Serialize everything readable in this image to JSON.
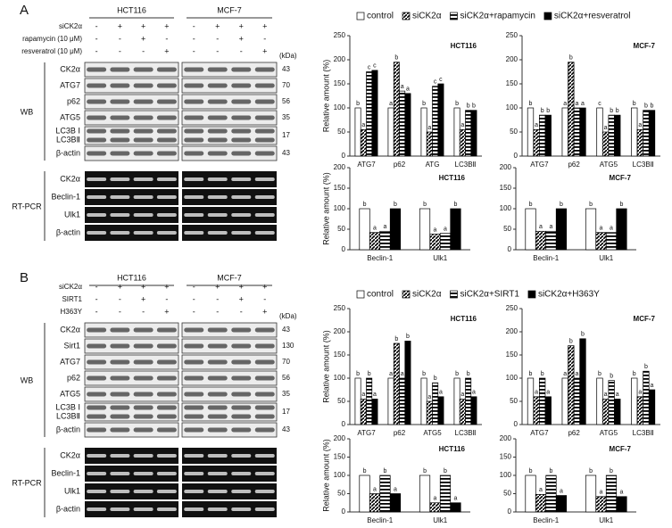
{
  "figure": {
    "panels": [
      {
        "label": "A",
        "cell_lines": [
          "HCT116",
          "MCF-7"
        ],
        "treatments": [
          {
            "name": "siCK2α",
            "signs": [
              "-",
              "+",
              "+",
              "+"
            ]
          },
          {
            "name": "rapamycin (10 μM)",
            "signs": [
              "-",
              "-",
              "+",
              "-"
            ]
          },
          {
            "name": "resveratrol (10 μM)",
            "signs": [
              "-",
              "-",
              "-",
              "+"
            ]
          }
        ],
        "kda_unit": "(kDa)",
        "wb_label": "WB",
        "wb_rows": [
          {
            "names": [
              "CK2α"
            ],
            "kda": 43
          },
          {
            "names": [
              "ATG7"
            ],
            "kda": 70
          },
          {
            "names": [
              "p62"
            ],
            "kda": 56
          },
          {
            "names": [
              "ATG5"
            ],
            "kda": 35
          },
          {
            "names": [
              "LC3B Ⅰ",
              "LC3BⅡ"
            ],
            "kda": 17
          },
          {
            "names": [
              "β-actin"
            ],
            "kda": 43
          }
        ],
        "rtpcr_label": "RT-PCR",
        "rtpcr_rows": [
          "CK2α",
          "Beclin-1",
          "Ulk1",
          "β-actin"
        ]
      },
      {
        "label": "B",
        "cell_lines": [
          "HCT116",
          "MCF-7"
        ],
        "treatments": [
          {
            "name": "siCK2α",
            "signs": [
              "-",
              "+",
              "+",
              "+"
            ]
          },
          {
            "name": "SIRT1",
            "signs": [
              "-",
              "-",
              "+",
              "-"
            ]
          },
          {
            "name": "H363Y",
            "signs": [
              "-",
              "-",
              "-",
              "+"
            ]
          }
        ],
        "kda_unit": "(kDa)",
        "wb_label": "WB",
        "wb_rows": [
          {
            "names": [
              "CK2α"
            ],
            "kda": 43
          },
          {
            "names": [
              "Sirt1"
            ],
            "kda": 130
          },
          {
            "names": [
              "ATG7"
            ],
            "kda": 70
          },
          {
            "names": [
              "p62"
            ],
            "kda": 56
          },
          {
            "names": [
              "ATG5"
            ],
            "kda": 35
          },
          {
            "names": [
              "LC3B Ⅰ",
              "LC3BⅡ"
            ],
            "kda": 17
          },
          {
            "names": [
              "β-actin"
            ],
            "kda": 43
          }
        ],
        "rtpcr_label": "RT-PCR",
        "rtpcr_rows": [
          "CK2α",
          "Beclin-1",
          "Ulk1",
          "β-actin"
        ]
      }
    ]
  },
  "chart_data": [
    {
      "type": "bar",
      "title": "HCT116",
      "y_label": "Relative amount (%)",
      "legend": true,
      "categories": [
        "ATG7",
        "p62",
        "ATG",
        "LC3BⅡ"
      ],
      "ylim": [
        0,
        250
      ],
      "yticks": [
        0,
        50,
        100,
        150,
        200,
        250
      ],
      "series": [
        {
          "name": "control",
          "color": "#ffffff",
          "pattern": "solid",
          "values": [
            100,
            100,
            100,
            100
          ],
          "letters": [
            "b",
            "a",
            "b",
            "b"
          ]
        },
        {
          "name": "siCK2α",
          "color": "#000000",
          "pattern": "diagonal",
          "values": [
            55,
            195,
            50,
            55
          ],
          "letters": [
            "a",
            "b",
            "a",
            "a"
          ]
        },
        {
          "name": "siCK2α+rapamycin",
          "color": "#000000",
          "pattern": "horizontal",
          "values": [
            175,
            135,
            145,
            95
          ],
          "letters": [
            "c",
            "a",
            "c",
            "b"
          ]
        },
        {
          "name": "siCK2α+resveratrol",
          "color": "#000000",
          "pattern": "solid",
          "values": [
            178,
            130,
            150,
            95
          ],
          "letters": [
            "c",
            "a",
            "c",
            "b"
          ]
        }
      ]
    },
    {
      "type": "bar",
      "title": "MCF-7",
      "categories": [
        "ATG7",
        "p62",
        "ATG5",
        "LC3BⅡ"
      ],
      "ylim": [
        0,
        250
      ],
      "yticks": [
        0,
        50,
        100,
        150,
        200,
        250
      ],
      "series": [
        {
          "name": "control",
          "color": "#ffffff",
          "pattern": "solid",
          "values": [
            100,
            100,
            100,
            100
          ],
          "letters": [
            "b",
            "a",
            "c",
            "b"
          ]
        },
        {
          "name": "siCK2α",
          "color": "#000000",
          "pattern": "diagonal",
          "values": [
            55,
            195,
            50,
            55
          ],
          "letters": [
            "a",
            "b",
            "a",
            "a"
          ]
        },
        {
          "name": "siCK2α+rapamycin",
          "color": "#000000",
          "pattern": "horizontal",
          "values": [
            85,
            100,
            85,
            95
          ],
          "letters": [
            "b",
            "a",
            "b",
            "b"
          ]
        },
        {
          "name": "siCK2α+resveratrol",
          "color": "#000000",
          "pattern": "solid",
          "values": [
            85,
            100,
            85,
            95
          ],
          "letters": [
            "b",
            "a",
            "b",
            "b"
          ]
        }
      ]
    },
    {
      "type": "bar",
      "title": "HCT116",
      "y_label": "Relative amount (%)",
      "categories": [
        "Beclin-1",
        "Ulk1"
      ],
      "ylim": [
        0,
        200
      ],
      "yticks": [
        0,
        50,
        100,
        150,
        200
      ],
      "series": [
        {
          "name": "control",
          "color": "#ffffff",
          "pattern": "solid",
          "values": [
            100,
            100
          ],
          "letters": [
            "b",
            "b"
          ]
        },
        {
          "name": "siCK2α",
          "color": "#000000",
          "pattern": "diagonal",
          "values": [
            42,
            38
          ],
          "letters": [
            "a",
            "a"
          ]
        },
        {
          "name": "siCK2α+rapamycin",
          "color": "#000000",
          "pattern": "horizontal",
          "values": [
            45,
            40
          ],
          "letters": [
            "a",
            "a"
          ]
        },
        {
          "name": "siCK2α+resveratrol",
          "color": "#000000",
          "pattern": "solid",
          "values": [
            100,
            100
          ],
          "letters": [
            "b",
            "b"
          ]
        }
      ]
    },
    {
      "type": "bar",
      "title": "MCF-7",
      "categories": [
        "Beclin-1",
        "Ulk1"
      ],
      "ylim": [
        0,
        200
      ],
      "yticks": [
        0,
        50,
        100,
        150,
        200
      ],
      "series": [
        {
          "name": "control",
          "color": "#ffffff",
          "pattern": "solid",
          "values": [
            100,
            100
          ],
          "letters": [
            "b",
            "b"
          ]
        },
        {
          "name": "siCK2α",
          "color": "#000000",
          "pattern": "diagonal",
          "values": [
            45,
            42
          ],
          "letters": [
            "a",
            "a"
          ]
        },
        {
          "name": "siCK2α+rapamycin",
          "color": "#000000",
          "pattern": "horizontal",
          "values": [
            45,
            42
          ],
          "letters": [
            "a",
            "a"
          ]
        },
        {
          "name": "siCK2α+resveratrol",
          "color": "#000000",
          "pattern": "solid",
          "values": [
            100,
            100
          ],
          "letters": [
            "b",
            "b"
          ]
        }
      ]
    },
    {
      "type": "bar",
      "title": "HCT116",
      "y_label": "Relative amount (%)",
      "legend": true,
      "categories": [
        "ATG7",
        "p62",
        "ATG5",
        "LC3BⅡ"
      ],
      "ylim": [
        0,
        250
      ],
      "yticks": [
        0,
        50,
        100,
        150,
        200,
        250
      ],
      "series": [
        {
          "name": "control",
          "color": "#ffffff",
          "pattern": "solid",
          "values": [
            100,
            100,
            100,
            100
          ],
          "letters": [
            "b",
            "a",
            "b",
            "b"
          ]
        },
        {
          "name": "siCK2α",
          "color": "#000000",
          "pattern": "diagonal",
          "values": [
            55,
            175,
            50,
            55
          ],
          "letters": [
            "a",
            "b",
            "a",
            "a"
          ]
        },
        {
          "name": "siCK2α+SIRT1",
          "color": "#000000",
          "pattern": "horizontal",
          "values": [
            100,
            100,
            90,
            100
          ],
          "letters": [
            "b",
            "a",
            "b",
            "b"
          ]
        },
        {
          "name": "siCK2α+H363Y",
          "color": "#000000",
          "pattern": "solid",
          "values": [
            55,
            180,
            60,
            60
          ],
          "letters": [
            "a",
            "b",
            "a",
            "a"
          ]
        }
      ]
    },
    {
      "type": "bar",
      "title": "MCF-7",
      "categories": [
        "ATG7",
        "p62",
        "ATG5",
        "LC3BⅡ"
      ],
      "ylim": [
        0,
        250
      ],
      "yticks": [
        0,
        50,
        100,
        150,
        200,
        250
      ],
      "series": [
        {
          "name": "control",
          "color": "#ffffff",
          "pattern": "solid",
          "values": [
            100,
            100,
            100,
            100
          ],
          "letters": [
            "b",
            "a",
            "b",
            "b"
          ]
        },
        {
          "name": "siCK2α",
          "color": "#000000",
          "pattern": "diagonal",
          "values": [
            60,
            170,
            55,
            60
          ],
          "letters": [
            "a",
            "b",
            "a",
            "a"
          ]
        },
        {
          "name": "siCK2α+SIRT1",
          "color": "#000000",
          "pattern": "horizontal",
          "values": [
            100,
            100,
            95,
            115
          ],
          "letters": [
            "b",
            "a",
            "b",
            "b"
          ]
        },
        {
          "name": "siCK2α+H363Y",
          "color": "#000000",
          "pattern": "solid",
          "values": [
            60,
            185,
            55,
            75
          ],
          "letters": [
            "a",
            "b",
            "a",
            "a"
          ]
        }
      ]
    },
    {
      "type": "bar",
      "title": "HCT116",
      "y_label": "Relative amount (%)",
      "categories": [
        "Beclin-1",
        "Ulk1"
      ],
      "ylim": [
        0,
        200
      ],
      "yticks": [
        0,
        50,
        100,
        150,
        200
      ],
      "series": [
        {
          "name": "control",
          "color": "#ffffff",
          "pattern": "solid",
          "values": [
            100,
            100
          ],
          "letters": [
            "b",
            "b"
          ]
        },
        {
          "name": "siCK2α",
          "color": "#000000",
          "pattern": "diagonal",
          "values": [
            50,
            25
          ],
          "letters": [
            "a",
            "a"
          ]
        },
        {
          "name": "siCK2α+SIRT1",
          "color": "#000000",
          "pattern": "horizontal",
          "values": [
            100,
            100
          ],
          "letters": [
            "b",
            "b"
          ]
        },
        {
          "name": "siCK2α+H363Y",
          "color": "#000000",
          "pattern": "solid",
          "values": [
            50,
            25
          ],
          "letters": [
            "a",
            "a"
          ]
        }
      ]
    },
    {
      "type": "bar",
      "title": "MCF-7",
      "categories": [
        "Beclin-1",
        "Ulk1"
      ],
      "ylim": [
        0,
        200
      ],
      "yticks": [
        0,
        50,
        100,
        150,
        200
      ],
      "series": [
        {
          "name": "control",
          "color": "#ffffff",
          "pattern": "solid",
          "values": [
            100,
            100
          ],
          "letters": [
            "b",
            "b"
          ]
        },
        {
          "name": "siCK2α",
          "color": "#000000",
          "pattern": "diagonal",
          "values": [
            48,
            42
          ],
          "letters": [
            "a",
            "a"
          ]
        },
        {
          "name": "siCK2α+SIRT1",
          "color": "#000000",
          "pattern": "horizontal",
          "values": [
            100,
            100
          ],
          "letters": [
            "b",
            "b"
          ]
        },
        {
          "name": "siCK2α+H363Y",
          "color": "#000000",
          "pattern": "solid",
          "values": [
            45,
            42
          ],
          "letters": [
            "a",
            "a"
          ]
        }
      ]
    }
  ]
}
